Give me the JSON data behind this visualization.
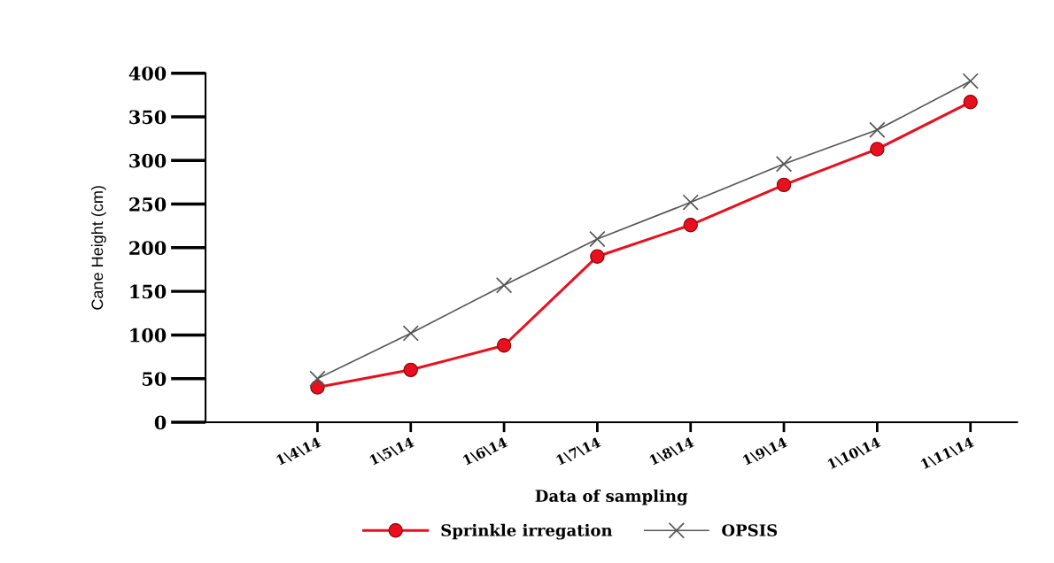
{
  "chart_data": {
    "type": "line",
    "xlabel": "Data of sampling",
    "ylabel": "Cane Height (cm)",
    "categories": [
      "1\\4\\14",
      "1\\5\\14",
      "1\\6\\14",
      "1\\7\\14",
      "1\\8\\14",
      "1\\9\\14",
      "1\\10\\14",
      "1\\11\\14"
    ],
    "ylim": [
      0,
      400
    ],
    "yticks": [
      0,
      50,
      100,
      150,
      200,
      250,
      300,
      350,
      400
    ],
    "grid": false,
    "legend": "bottom",
    "series": [
      {
        "name": "Sprinkle irregation",
        "color": "#e8101e",
        "marker": "circle",
        "values": [
          40,
          60,
          88,
          190,
          226,
          272,
          313,
          367
        ]
      },
      {
        "name": "OPSIS",
        "color": "#555555",
        "marker": "cross",
        "values": [
          50,
          102,
          157,
          210,
          252,
          296,
          335,
          391
        ]
      }
    ]
  }
}
